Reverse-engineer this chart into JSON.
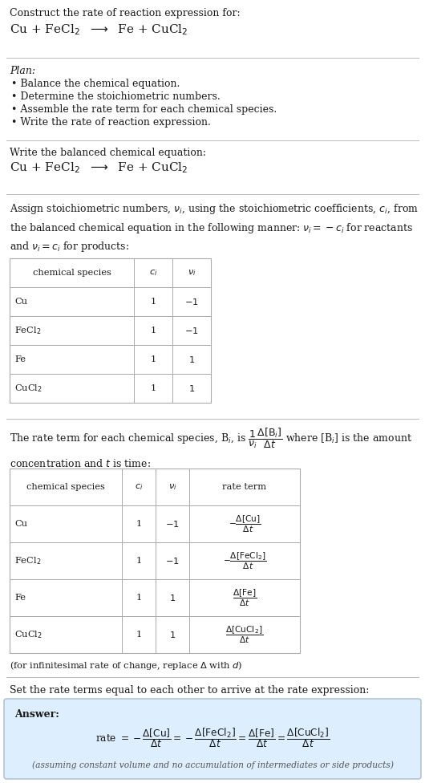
{
  "bg_color": "#ffffff",
  "text_color": "#1a1a1a",
  "gray_text": "#555555",
  "answer_bg": "#ddeeff",
  "answer_border": "#aabbcc",
  "line_color": "#bbbbbb",
  "table_border": "#aaaaaa",
  "font_main": 9.0,
  "font_small": 8.2,
  "font_eq": 9.5,
  "title_line1": "Construct the rate of reaction expression for:",
  "title_eq": "Cu + FeCl$_2$  $\\longrightarrow$  Fe + CuCl$_2$",
  "plan_header": "Plan:",
  "plan_items": [
    "• Balance the chemical equation.",
    "• Determine the stoichiometric numbers.",
    "• Assemble the rate term for each chemical species.",
    "• Write the rate of reaction expression."
  ],
  "balanced_header": "Write the balanced chemical equation:",
  "balanced_eq": "Cu + FeCl$_2$  $\\longrightarrow$  Fe + CuCl$_2$",
  "stoich_intro": "Assign stoichiometric numbers, $\\nu_i$, using the stoichiometric coefficients, $c_i$, from\nthe balanced chemical equation in the following manner: $\\nu_i = -c_i$ for reactants\nand $\\nu_i = c_i$ for products:",
  "table1_headers": [
    "chemical species",
    "$c_i$",
    "$\\nu_i$"
  ],
  "table1_rows": [
    [
      "Cu",
      "1",
      "$-1$"
    ],
    [
      "FeCl$_2$",
      "1",
      "$-1$"
    ],
    [
      "Fe",
      "1",
      "$1$"
    ],
    [
      "CuCl$_2$",
      "1",
      "$1$"
    ]
  ],
  "rate_intro": "The rate term for each chemical species, B$_i$, is $\\dfrac{1}{\\nu_i}\\dfrac{\\Delta[\\mathrm{B}_i]}{\\Delta t}$ where [B$_i$] is the amount\nconcentration and $t$ is time:",
  "table2_headers": [
    "chemical species",
    "$c_i$",
    "$\\nu_i$",
    "rate term"
  ],
  "table2_rows": [
    [
      "Cu",
      "1",
      "$-1$",
      "$-\\dfrac{\\Delta[\\mathrm{Cu}]}{\\Delta t}$"
    ],
    [
      "FeCl$_2$",
      "1",
      "$-1$",
      "$-\\dfrac{\\Delta[\\mathrm{FeCl_2}]}{\\Delta t}$"
    ],
    [
      "Fe",
      "1",
      "$1$",
      "$\\dfrac{\\Delta[\\mathrm{Fe}]}{\\Delta t}$"
    ],
    [
      "CuCl$_2$",
      "1",
      "$1$",
      "$\\dfrac{\\Delta[\\mathrm{CuCl_2}]}{\\Delta t}$"
    ]
  ],
  "infinitesimal_note": "(for infinitesimal rate of change, replace $\\Delta$ with $d$)",
  "set_equal_text": "Set the rate terms equal to each other to arrive at the rate expression:",
  "answer_label": "Answer:",
  "answer_eq": "rate $= -\\dfrac{\\Delta[\\mathrm{Cu}]}{\\Delta t} = -\\dfrac{\\Delta[\\mathrm{FeCl_2}]}{\\Delta t} = \\dfrac{\\Delta[\\mathrm{Fe}]}{\\Delta t} = \\dfrac{\\Delta[\\mathrm{CuCl_2}]}{\\Delta t}$",
  "answer_note": "(assuming constant volume and no accumulation of intermediates or side products)"
}
